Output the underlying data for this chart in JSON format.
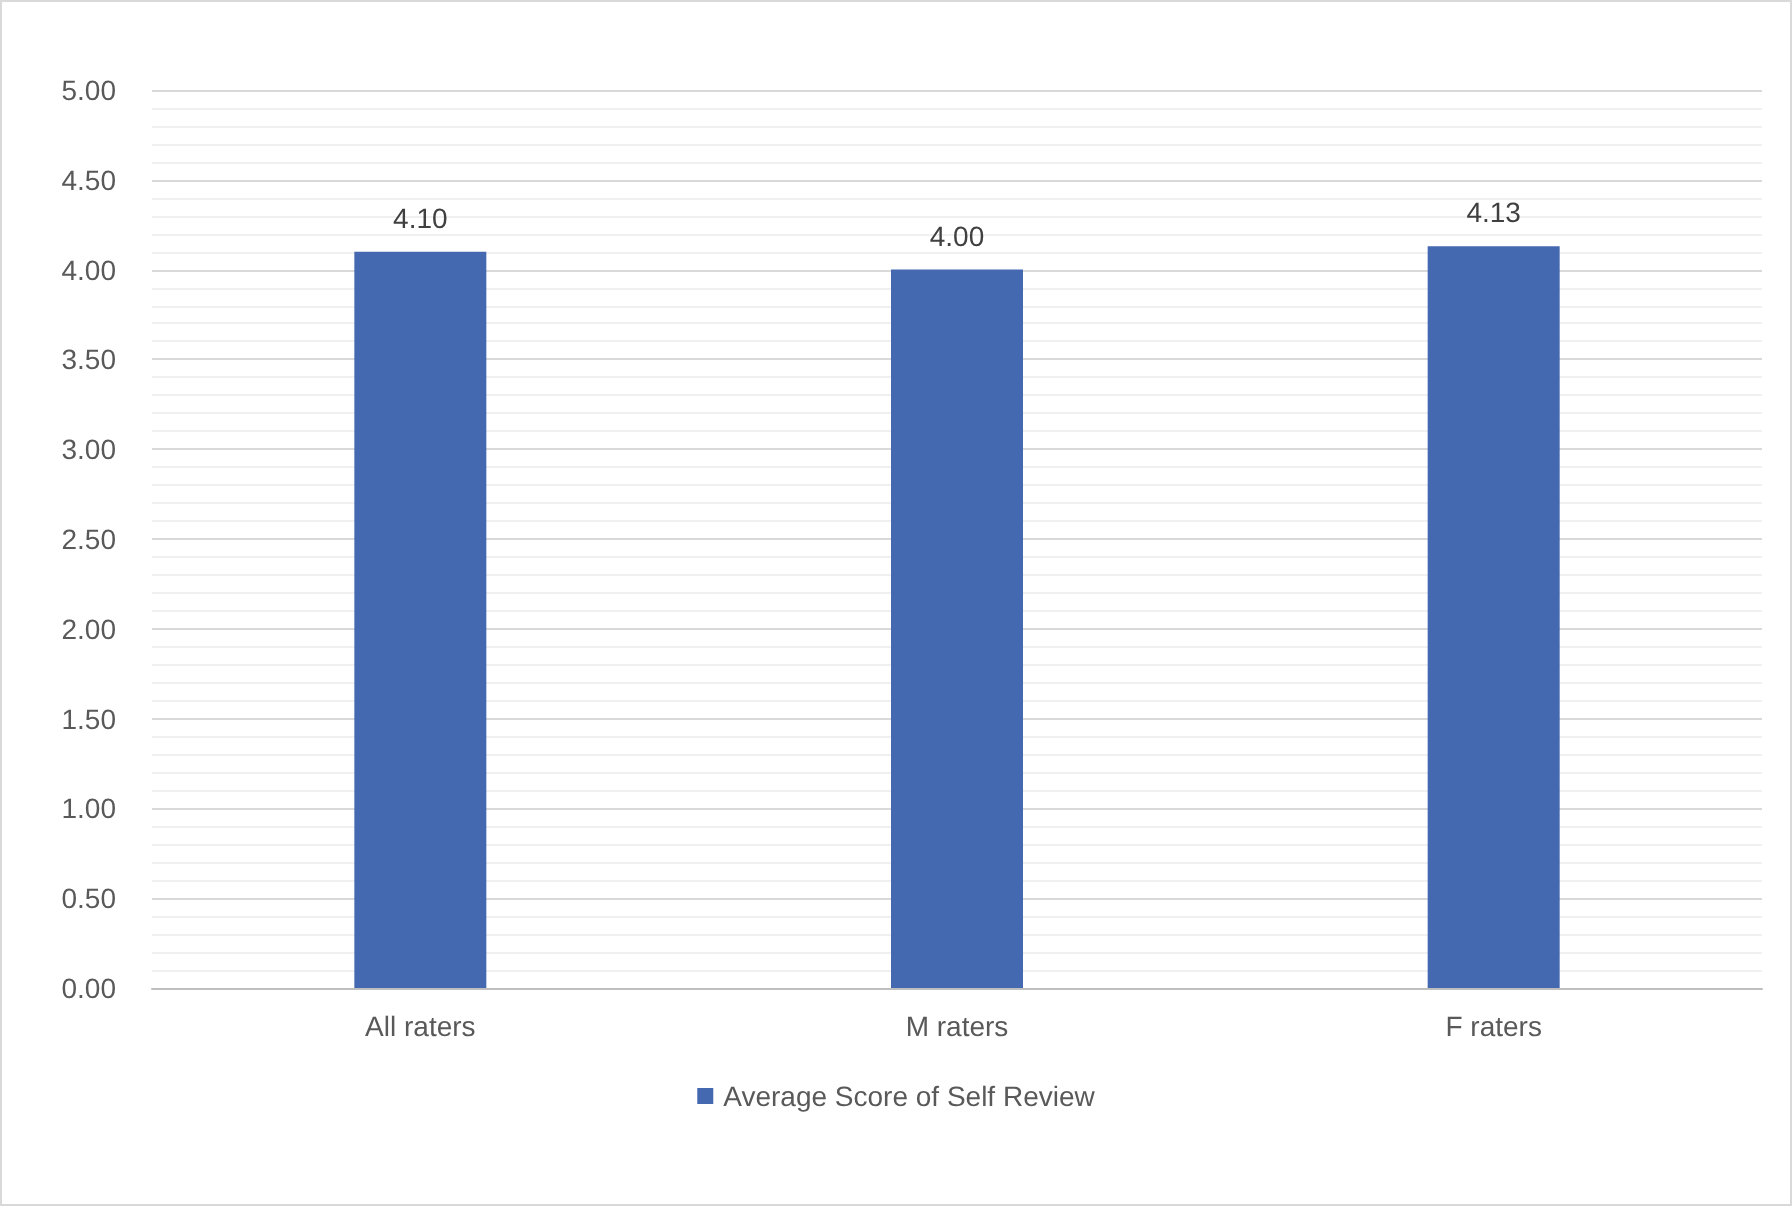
{
  "chart_data": {
    "type": "bar",
    "categories": [
      "All raters",
      "M raters",
      "F raters"
    ],
    "series": [
      {
        "name": "Average Score of Self Review",
        "color": "#4469b1",
        "values": [
          4.1,
          4.0,
          4.13
        ],
        "value_labels": [
          "4.10",
          "4.00",
          "4.13"
        ]
      }
    ],
    "ylim": [
      0,
      5
    ],
    "yticks": [
      {
        "value": 0,
        "label": "0.00"
      },
      {
        "value": 0.5,
        "label": "0.50"
      },
      {
        "value": 1,
        "label": "1.00"
      },
      {
        "value": 1.5,
        "label": "1.50"
      },
      {
        "value": 2,
        "label": "2.00"
      },
      {
        "value": 2.5,
        "label": "2.50"
      },
      {
        "value": 3,
        "label": "3.00"
      },
      {
        "value": 3.5,
        "label": "3.50"
      },
      {
        "value": 4,
        "label": "4.00"
      },
      {
        "value": 4.5,
        "label": "4.50"
      },
      {
        "value": 5,
        "label": "5.00"
      }
    ],
    "grid": "y",
    "legend": "bottom"
  }
}
